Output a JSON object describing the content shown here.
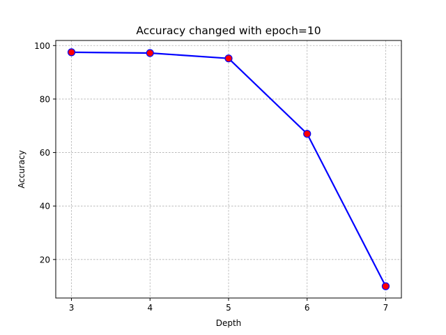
{
  "chart_data": {
    "type": "line",
    "title": "Accuracy changed with epoch=10",
    "xlabel": "Depth",
    "ylabel": "Accuracy",
    "x": [
      3,
      4,
      5,
      6,
      7
    ],
    "series": [
      {
        "values": [
          97.5,
          97.2,
          95.2,
          67.0,
          10.0
        ],
        "line_color": "#0000ff",
        "marker_face_color": "#ff0000",
        "marker_edge_color": "#0000ff",
        "marker": "circle"
      }
    ],
    "xticks": [
      3,
      4,
      5,
      6,
      7
    ],
    "yticks": [
      20,
      40,
      60,
      80,
      100
    ],
    "xlim": [
      2.8,
      7.2
    ],
    "ylim": [
      5.6,
      101.9
    ],
    "grid": true,
    "grid_style": "dashed",
    "grid_color": "#b0b0b0"
  }
}
